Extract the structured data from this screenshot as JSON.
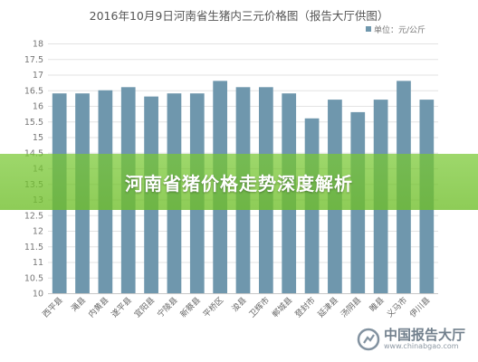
{
  "chart_data": {
    "type": "bar",
    "title": "2016年10月9日河南省生猪内三元价格图（报告大厅供图）",
    "legend": {
      "label": "单位：元/公斤",
      "position": "top-right"
    },
    "ylim": [
      10,
      18
    ],
    "yticks": [
      "10",
      "10.5",
      "11",
      "11.5",
      "12",
      "12.5",
      "13",
      "13.5",
      "14",
      "14.5",
      "15",
      "15.5",
      "16",
      "16.5",
      "17",
      "17.5",
      "18"
    ],
    "grid": true,
    "categories": [
      "西平县",
      "渑县",
      "内黄县",
      "遂平县",
      "宜阳县",
      "宁陵县",
      "新蔡县",
      "平桥区",
      "浚县",
      "卫辉市",
      "郸城县",
      "登封市",
      "延津县",
      "汤阴县",
      "睢县",
      "义马市",
      "伊川县"
    ],
    "values": [
      16.4,
      16.4,
      16.5,
      16.6,
      16.3,
      16.4,
      16.4,
      16.8,
      16.6,
      16.6,
      16.4,
      15.6,
      16.2,
      15.8,
      16.2,
      16.8,
      16.2
    ],
    "bar_color": "#6f97ad"
  },
  "banner": {
    "text": "河南省猪价格走势深度解析"
  },
  "watermark": {
    "name": "中国报告大厅",
    "url": "www.chinabgao.com"
  }
}
